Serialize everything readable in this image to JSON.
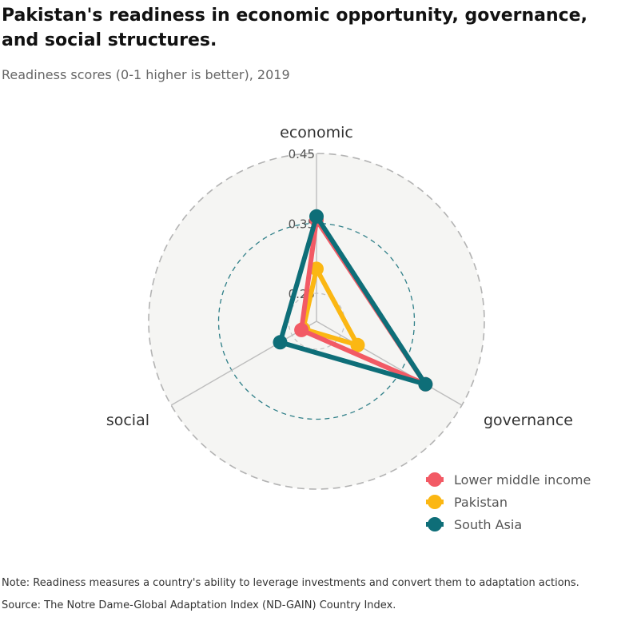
{
  "header": {
    "title": "Pakistan's readiness in economic opportunity, governance, and social structures.",
    "subtitle": "Readiness scores (0-1 higher is better), 2019"
  },
  "footer": {
    "note": "Note: Readiness measures a country's ability to leverage investments and convert them to adaptation actions.",
    "source": "Source: The Notre Dame-Global Adaptation Index (ND-GAIN) Country Index."
  },
  "chart_data": {
    "type": "radar",
    "axes": [
      "economic",
      "governance",
      "social"
    ],
    "ticks": [
      "0.25",
      "0.35",
      "0.45"
    ],
    "tick_values": [
      0.25,
      0.35,
      0.45
    ],
    "range": [
      0.21,
      0.45
    ],
    "grid": "dashed circles",
    "legend_position": "bottom-right",
    "series": [
      {
        "name": "Lower middle income",
        "color": "#f25a65",
        "values": [
          0.355,
          0.39,
          0.235
        ]
      },
      {
        "name": "Pakistan",
        "color": "#fbb713",
        "values": [
          0.285,
          0.278,
          0.232
        ]
      },
      {
        "name": "South Asia",
        "color": "#0e6e78",
        "values": [
          0.36,
          0.39,
          0.27
        ]
      }
    ]
  }
}
